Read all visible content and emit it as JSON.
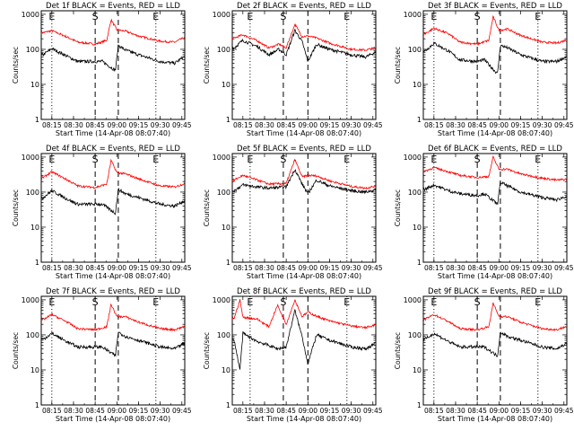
{
  "figure": {
    "xlabel": "Start Time (14-Apr-08 08:07:40)",
    "ylabel": "Counts/sec",
    "x_tick_labels": [
      "08:15",
      "08:30",
      "08:45",
      "09:00",
      "09:15",
      "09:30",
      "09:45"
    ],
    "y_tick_labels": [
      "1",
      "10",
      "100",
      "1000"
    ],
    "marker_labels": [
      "E",
      "S",
      "E"
    ],
    "colors": {
      "events": "#000000",
      "lld": "#ff0000",
      "axes": "#000000",
      "background": "#ffffff"
    }
  },
  "chart_data": [
    {
      "type": "line",
      "title": "Det 1f BLACK = Events, RED = LLD",
      "xlabel": "Start Time (14-Apr-08 08:07:40)",
      "ylabel": "Counts/sec",
      "yscale": "log",
      "ylim": [
        1,
        1000
      ],
      "x_ticks": [
        "08:15",
        "08:30",
        "08:45",
        "09:00",
        "09:15",
        "09:30",
        "09:45"
      ],
      "markers": [
        {
          "label": "E",
          "time": "08:15",
          "style": "dotted"
        },
        {
          "label": "S",
          "time": "08:45",
          "style": "dashed"
        },
        {
          "label": "",
          "time": "09:01",
          "style": "dashed"
        },
        {
          "label": "E",
          "time": "09:27",
          "style": "dotted"
        }
      ],
      "series": [
        {
          "name": "LLD",
          "color": "#ff0000",
          "x": [
            "08:09",
            "08:15",
            "08:25",
            "08:33",
            "08:45",
            "08:53",
            "08:56",
            "09:00",
            "09:06",
            "09:15",
            "09:30",
            "09:40",
            "09:46"
          ],
          "y": [
            300,
            340,
            230,
            160,
            140,
            180,
            700,
            360,
            330,
            240,
            170,
            160,
            210
          ]
        },
        {
          "name": "Events",
          "color": "#000000",
          "x": [
            "08:09",
            "08:15",
            "08:25",
            "08:33",
            "08:45",
            "08:50",
            "08:59",
            "09:01",
            "09:06",
            "09:15",
            "09:30",
            "09:40",
            "09:46"
          ],
          "y": [
            70,
            105,
            65,
            45,
            45,
            45,
            25,
            130,
            95,
            70,
            45,
            40,
            60
          ]
        }
      ]
    },
    {
      "type": "line",
      "title": "Det 2f BLACK = Events, RED = LLD",
      "xlabel": "Start Time (14-Apr-08 08:07:40)",
      "ylabel": "Counts/sec",
      "yscale": "log",
      "ylim": [
        1,
        1000
      ],
      "x_ticks": [
        "08:15",
        "08:30",
        "08:45",
        "09:00",
        "09:15",
        "09:30",
        "09:45"
      ],
      "markers": [
        {
          "label": "E",
          "time": "08:20",
          "style": "dotted"
        },
        {
          "label": "S",
          "time": "08:43",
          "style": "dashed"
        },
        {
          "label": "",
          "time": "09:00",
          "style": "dashed"
        },
        {
          "label": "E",
          "time": "09:27",
          "style": "dotted"
        }
      ],
      "series": [
        {
          "name": "LLD",
          "color": "#ff0000",
          "x": [
            "08:09",
            "08:15",
            "08:25",
            "08:33",
            "08:40",
            "08:45",
            "08:51",
            "08:56",
            "09:00",
            "09:06",
            "09:15",
            "09:30",
            "09:40",
            "09:46"
          ],
          "y": [
            210,
            260,
            175,
            110,
            140,
            110,
            520,
            230,
            240,
            210,
            150,
            100,
            95,
            110
          ]
        },
        {
          "name": "Events",
          "color": "#000000",
          "x": [
            "08:09",
            "08:15",
            "08:25",
            "08:33",
            "08:40",
            "08:45",
            "08:51",
            "08:56",
            "09:00",
            "09:06",
            "09:15",
            "09:30",
            "09:40",
            "09:46"
          ],
          "y": [
            110,
            180,
            120,
            70,
            100,
            70,
            350,
            165,
            45,
            140,
            100,
            70,
            60,
            80
          ]
        }
      ]
    },
    {
      "type": "line",
      "title": "Det 3f BLACK = Events, RED = LLD",
      "xlabel": "Start Time (14-Apr-08 08:07:40)",
      "ylabel": "Counts/sec",
      "yscale": "log",
      "ylim": [
        1,
        1000
      ],
      "x_ticks": [
        "08:15",
        "08:30",
        "08:45",
        "09:00",
        "09:15",
        "09:30",
        "09:45"
      ],
      "markers": [
        {
          "label": "E",
          "time": "08:15",
          "style": "dotted"
        },
        {
          "label": "S",
          "time": "08:45",
          "style": "dashed"
        },
        {
          "label": "",
          "time": "09:01",
          "style": "dashed"
        },
        {
          "label": "E",
          "time": "09:27",
          "style": "dotted"
        }
      ],
      "series": [
        {
          "name": "LLD",
          "color": "#ff0000",
          "x": [
            "08:09",
            "08:15",
            "08:25",
            "08:33",
            "08:45",
            "08:53",
            "08:56",
            "09:00",
            "09:06",
            "09:15",
            "09:30",
            "09:40",
            "09:46"
          ],
          "y": [
            280,
            400,
            280,
            160,
            140,
            180,
            850,
            350,
            380,
            250,
            160,
            150,
            180
          ]
        },
        {
          "name": "Events",
          "color": "#000000",
          "x": [
            "08:09",
            "08:15",
            "08:25",
            "08:33",
            "08:45",
            "08:50",
            "08:59",
            "09:01",
            "09:06",
            "09:15",
            "09:30",
            "09:40",
            "09:46"
          ],
          "y": [
            90,
            150,
            90,
            50,
            45,
            50,
            20,
            130,
            110,
            70,
            45,
            45,
            60
          ]
        }
      ]
    },
    {
      "type": "line",
      "title": "Det 4f BLACK = Events, RED = LLD",
      "xlabel": "Start Time (14-Apr-08 08:07:40)",
      "ylabel": "Counts/sec",
      "yscale": "log",
      "ylim": [
        1,
        1000
      ],
      "x_ticks": [
        "08:15",
        "08:30",
        "08:45",
        "09:00",
        "09:15",
        "09:30",
        "09:45"
      ],
      "markers": [
        {
          "label": "E",
          "time": "08:15",
          "style": "dotted"
        },
        {
          "label": "S",
          "time": "08:45",
          "style": "dashed"
        },
        {
          "label": "",
          "time": "09:01",
          "style": "dashed"
        },
        {
          "label": "E",
          "time": "09:27",
          "style": "dotted"
        }
      ],
      "series": [
        {
          "name": "LLD",
          "color": "#ff0000",
          "x": [
            "08:09",
            "08:15",
            "08:25",
            "08:33",
            "08:45",
            "08:53",
            "08:56",
            "09:00",
            "09:06",
            "09:15",
            "09:30",
            "09:40",
            "09:46"
          ],
          "y": [
            260,
            380,
            230,
            150,
            135,
            170,
            800,
            360,
            330,
            240,
            150,
            140,
            170
          ]
        },
        {
          "name": "Events",
          "color": "#000000",
          "x": [
            "08:09",
            "08:15",
            "08:25",
            "08:33",
            "08:45",
            "08:50",
            "08:59",
            "09:01",
            "09:06",
            "09:15",
            "09:30",
            "09:40",
            "09:46"
          ],
          "y": [
            70,
            110,
            65,
            45,
            45,
            45,
            25,
            120,
            90,
            70,
            45,
            40,
            55
          ]
        }
      ]
    },
    {
      "type": "line",
      "title": "Det 5f BLACK = Events, RED = LLD",
      "xlabel": "Start Time (14-Apr-08 08:07:40)",
      "ylabel": "Counts/sec",
      "yscale": "log",
      "ylim": [
        1,
        1000
      ],
      "x_ticks": [
        "08:15",
        "08:30",
        "08:45",
        "09:00",
        "09:15",
        "09:30",
        "09:45"
      ],
      "markers": [
        {
          "label": "E",
          "time": "08:20",
          "style": "dotted"
        },
        {
          "label": "S",
          "time": "08:43",
          "style": "dashed"
        },
        {
          "label": "",
          "time": "09:00",
          "style": "dashed"
        },
        {
          "label": "E",
          "time": "09:27",
          "style": "dotted"
        }
      ],
      "series": [
        {
          "name": "LLD",
          "color": "#ff0000",
          "x": [
            "08:09",
            "08:15",
            "08:25",
            "08:33",
            "08:45",
            "08:51",
            "08:56",
            "09:00",
            "09:06",
            "09:15",
            "09:30",
            "09:40",
            "09:46"
          ],
          "y": [
            220,
            300,
            220,
            170,
            175,
            850,
            270,
            300,
            290,
            210,
            145,
            130,
            145
          ]
        },
        {
          "name": "Events",
          "color": "#000000",
          "x": [
            "08:09",
            "08:15",
            "08:25",
            "08:33",
            "08:45",
            "08:51",
            "08:56",
            "09:00",
            "09:06",
            "09:15",
            "09:30",
            "09:40",
            "09:46"
          ],
          "y": [
            110,
            160,
            140,
            130,
            140,
            450,
            170,
            90,
            220,
            150,
            110,
            100,
            115
          ]
        }
      ]
    },
    {
      "type": "line",
      "title": "Det 6f BLACK = Events, RED = LLD",
      "xlabel": "Start Time (14-Apr-08 08:07:40)",
      "ylabel": "Counts/sec",
      "yscale": "log",
      "ylim": [
        1,
        1000
      ],
      "x_ticks": [
        "08:15",
        "08:30",
        "08:45",
        "09:00",
        "09:15",
        "09:30",
        "09:45"
      ],
      "markers": [
        {
          "label": "E",
          "time": "08:15",
          "style": "dotted"
        },
        {
          "label": "S",
          "time": "08:45",
          "style": "dashed"
        },
        {
          "label": "",
          "time": "09:01",
          "style": "dashed"
        },
        {
          "label": "E",
          "time": "09:27",
          "style": "dotted"
        }
      ],
      "series": [
        {
          "name": "LLD",
          "color": "#ff0000",
          "x": [
            "08:09",
            "08:15",
            "08:25",
            "08:33",
            "08:45",
            "08:53",
            "08:56",
            "09:00",
            "09:06",
            "09:15",
            "09:30",
            "09:40",
            "09:46"
          ],
          "y": [
            400,
            500,
            380,
            300,
            260,
            280,
            1000,
            450,
            450,
            330,
            250,
            220,
            230
          ]
        },
        {
          "name": "Events",
          "color": "#000000",
          "x": [
            "08:09",
            "08:15",
            "08:25",
            "08:33",
            "08:45",
            "08:50",
            "08:59",
            "09:01",
            "09:06",
            "09:15",
            "09:30",
            "09:40",
            "09:46"
          ],
          "y": [
            120,
            160,
            110,
            90,
            80,
            90,
            45,
            190,
            150,
            100,
            70,
            60,
            75
          ]
        }
      ]
    },
    {
      "type": "line",
      "title": "Det 7f BLACK = Events, RED = LLD",
      "xlabel": "Start Time (14-Apr-08 08:07:40)",
      "ylabel": "Counts/sec",
      "yscale": "log",
      "ylim": [
        1,
        1000
      ],
      "x_ticks": [
        "08:15",
        "08:30",
        "08:45",
        "09:00",
        "09:15",
        "09:30",
        "09:45"
      ],
      "markers": [
        {
          "label": "E",
          "time": "08:15",
          "style": "dotted"
        },
        {
          "label": "S",
          "time": "08:45",
          "style": "dashed"
        },
        {
          "label": "",
          "time": "09:01",
          "style": "dashed"
        },
        {
          "label": "E",
          "time": "09:27",
          "style": "dotted"
        }
      ],
      "series": [
        {
          "name": "LLD",
          "color": "#ff0000",
          "x": [
            "08:09",
            "08:15",
            "08:25",
            "08:33",
            "08:45",
            "08:53",
            "08:56",
            "09:00",
            "09:06",
            "09:15",
            "09:30",
            "09:40",
            "09:46"
          ],
          "y": [
            270,
            380,
            240,
            150,
            140,
            170,
            750,
            330,
            330,
            230,
            150,
            140,
            170
          ]
        },
        {
          "name": "Events",
          "color": "#000000",
          "x": [
            "08:09",
            "08:15",
            "08:25",
            "08:33",
            "08:45",
            "08:50",
            "08:59",
            "09:01",
            "09:06",
            "09:15",
            "09:30",
            "09:40",
            "09:46"
          ],
          "y": [
            75,
            110,
            65,
            45,
            45,
            45,
            25,
            120,
            90,
            70,
            45,
            40,
            55
          ]
        }
      ]
    },
    {
      "type": "line",
      "title": "Det 8f BLACK = Events, RED = LLD",
      "xlabel": "Start Time (14-Apr-08 08:07:40)",
      "ylabel": "Counts/sec",
      "yscale": "log",
      "ylim": [
        1,
        1000
      ],
      "x_ticks": [
        "08:15",
        "08:30",
        "08:45",
        "09:00",
        "09:15",
        "09:30",
        "09:45"
      ],
      "markers": [
        {
          "label": "E",
          "time": "08:20",
          "style": "dotted"
        },
        {
          "label": "S",
          "time": "08:43",
          "style": "dashed"
        },
        {
          "label": "",
          "time": "09:00",
          "style": "dashed"
        },
        {
          "label": "E",
          "time": "09:27",
          "style": "dotted"
        }
      ],
      "series": [
        {
          "name": "LLD",
          "color": "#ff0000",
          "x": [
            "08:09",
            "08:13",
            "08:15",
            "08:25",
            "08:33",
            "08:39",
            "08:45",
            "08:51",
            "08:56",
            "09:00",
            "09:06",
            "09:15",
            "09:30",
            "09:40",
            "09:46"
          ],
          "y": [
            300,
            1000,
            320,
            280,
            170,
            700,
            200,
            1000,
            330,
            450,
            340,
            250,
            180,
            160,
            190
          ]
        },
        {
          "name": "Events",
          "color": "#000000",
          "x": [
            "08:09",
            "08:13",
            "08:15",
            "08:25",
            "08:33",
            "08:39",
            "08:45",
            "08:51",
            "08:56",
            "09:00",
            "09:06",
            "09:15",
            "09:30",
            "09:40",
            "09:46"
          ],
          "y": [
            70,
            10,
            110,
            65,
            50,
            40,
            45,
            500,
            90,
            15,
            100,
            70,
            45,
            40,
            55
          ]
        }
      ]
    },
    {
      "type": "line",
      "title": "Det 9f BLACK = Events, RED = LLD",
      "xlabel": "Start Time (14-Apr-08 08:07:40)",
      "ylabel": "Counts/sec",
      "yscale": "log",
      "ylim": [
        1,
        1000
      ],
      "x_ticks": [
        "08:15",
        "08:30",
        "08:45",
        "09:00",
        "09:15",
        "09:30",
        "09:45"
      ],
      "markers": [
        {
          "label": "E",
          "time": "08:15",
          "style": "dotted"
        },
        {
          "label": "S",
          "time": "08:45",
          "style": "dashed"
        },
        {
          "label": "",
          "time": "09:01",
          "style": "dashed"
        },
        {
          "label": "E",
          "time": "09:27",
          "style": "dotted"
        }
      ],
      "series": [
        {
          "name": "LLD",
          "color": "#ff0000",
          "x": [
            "08:09",
            "08:15",
            "08:25",
            "08:33",
            "08:45",
            "08:53",
            "08:56",
            "09:00",
            "09:06",
            "09:15",
            "09:30",
            "09:40",
            "09:46"
          ],
          "y": [
            280,
            380,
            240,
            150,
            140,
            170,
            800,
            340,
            330,
            230,
            150,
            140,
            170
          ]
        },
        {
          "name": "Events",
          "color": "#000000",
          "x": [
            "08:09",
            "08:15",
            "08:25",
            "08:33",
            "08:45",
            "08:50",
            "08:59",
            "09:01",
            "09:06",
            "09:15",
            "09:30",
            "09:40",
            "09:46"
          ],
          "y": [
            75,
            110,
            65,
            45,
            45,
            45,
            25,
            120,
            90,
            70,
            45,
            40,
            55
          ]
        }
      ]
    }
  ]
}
